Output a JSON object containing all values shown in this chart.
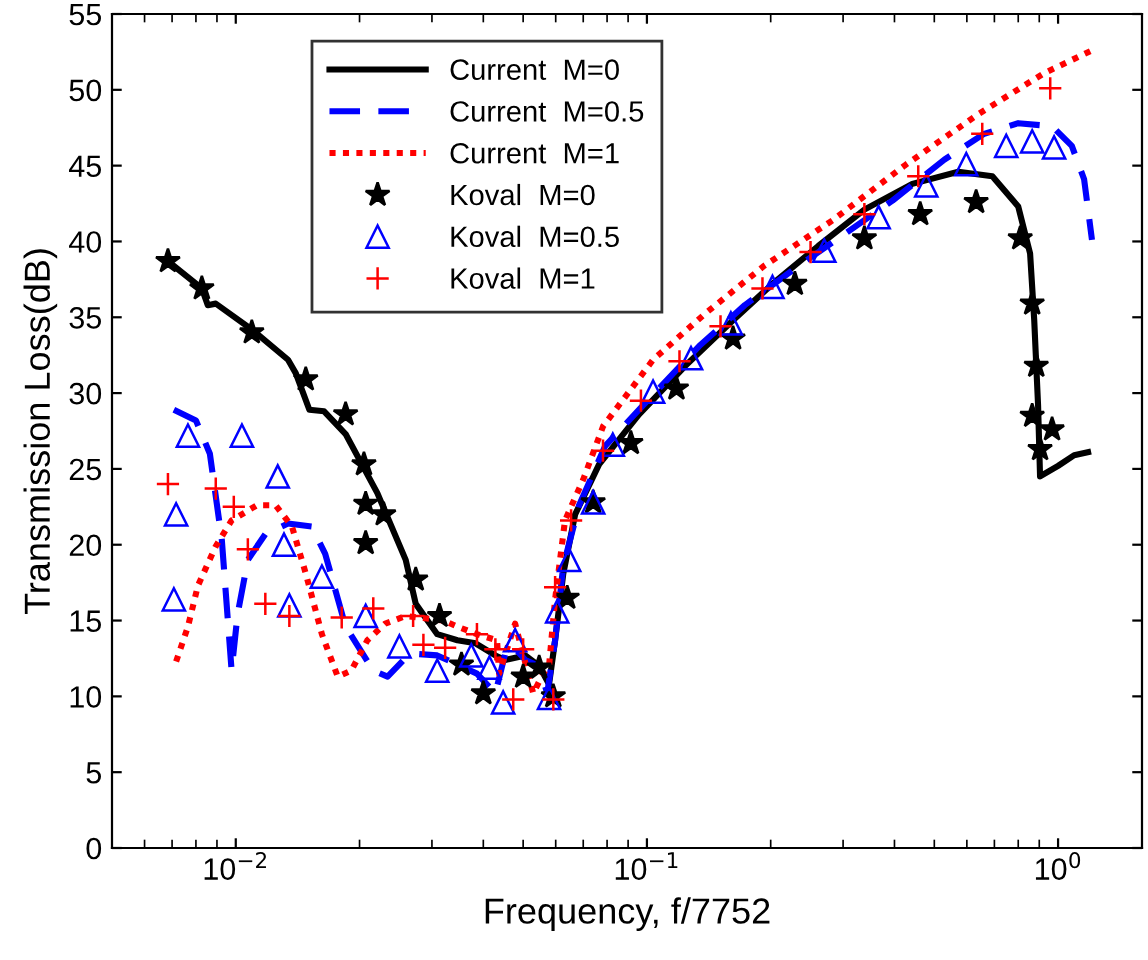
{
  "chart_data": {
    "type": "line",
    "xlabel": "Frequency, f/7752",
    "ylabel": "Transmission Loss(dB)",
    "log": "x",
    "grid": false,
    "legend": "top left",
    "xlim": [
      0.005,
      1.6
    ],
    "ylim": [
      0,
      55
    ],
    "xticks": [
      {
        "value": 0.006,
        "label": null
      },
      {
        "value": 0.007,
        "label": null
      },
      {
        "value": 0.008,
        "label": null
      },
      {
        "value": 0.009,
        "label": null
      },
      {
        "value": 0.01,
        "label": "10$^{−2}$"
      },
      {
        "value": 0.02,
        "label": null
      },
      {
        "value": 0.03,
        "label": null
      },
      {
        "value": 0.04,
        "label": null
      },
      {
        "value": 0.05,
        "label": null
      },
      {
        "value": 0.06,
        "label": null
      },
      {
        "value": 0.07,
        "label": null
      },
      {
        "value": 0.08,
        "label": null
      },
      {
        "value": 0.09,
        "label": null
      },
      {
        "value": 0.1,
        "label": "10$^{−1}$"
      },
      {
        "value": 0.2,
        "label": null
      },
      {
        "value": 0.3,
        "label": null
      },
      {
        "value": 0.4,
        "label": null
      },
      {
        "value": 0.5,
        "label": null
      },
      {
        "value": 0.6,
        "label": null
      },
      {
        "value": 0.7,
        "label": null
      },
      {
        "value": 0.8,
        "label": null
      },
      {
        "value": 0.9,
        "label": null
      },
      {
        "value": 1,
        "label": "10$^{0}$"
      }
    ],
    "yticks": [
      0,
      5,
      10,
      15,
      20,
      25,
      30,
      35,
      40,
      45,
      50,
      55
    ],
    "series": [
      {
        "name": "Current  M=0",
        "type": "line",
        "color": "#000000",
        "line_style": "solid",
        "marker": "none",
        "x": [
          0.00684,
          0.00827,
          0.00855,
          0.00894,
          0.01094,
          0.0134,
          0.014,
          0.0151,
          0.0164,
          0.0185,
          0.0221,
          0.0259,
          0.0274,
          0.0309,
          0.0346,
          0.0383,
          0.0428,
          0.0452,
          0.0506,
          0.0547,
          0.0578,
          0.0598,
          0.0626,
          0.0669,
          0.0765,
          0.0957,
          0.124,
          0.162,
          0.202,
          0.261,
          0.338,
          0.442,
          0.572,
          0.692,
          0.8,
          0.855,
          0.875,
          0.894,
          0.904,
          1.0,
          1.094,
          1.183
        ],
        "values": [
          38.7,
          36.9,
          35.8,
          35.9,
          34.2,
          32.2,
          31.3,
          28.9,
          28.8,
          27.3,
          23.4,
          19.0,
          16.1,
          14.1,
          13.7,
          13.5,
          12.7,
          12.4,
          12.7,
          12.0,
          10.8,
          13.7,
          18.1,
          22.0,
          25.3,
          28.6,
          31.8,
          34.8,
          37.2,
          39.7,
          42.1,
          43.8,
          44.6,
          44.3,
          42.3,
          39.2,
          34.8,
          29.2,
          24.5,
          25.2,
          25.9,
          26.1
        ]
      },
      {
        "name": "Current  M=0.5",
        "type": "line",
        "color": "#0000ff",
        "line_style": "dashed",
        "marker": "none",
        "x": [
          0.00707,
          0.008,
          0.00865,
          0.00925,
          0.00977,
          0.0101,
          0.0107,
          0.0118,
          0.0134,
          0.0153,
          0.0165,
          0.0185,
          0.0216,
          0.0234,
          0.0256,
          0.0274,
          0.0309,
          0.0346,
          0.0386,
          0.0428,
          0.0452,
          0.0473,
          0.0506,
          0.0547,
          0.0572,
          0.0598,
          0.0626,
          0.0684,
          0.0765,
          0.0791,
          0.1035,
          0.134,
          0.173,
          0.234,
          0.303,
          0.396,
          0.529,
          0.661,
          0.8,
          0.967,
          1.08,
          1.157,
          1.209
        ],
        "values": [
          28.9,
          28.2,
          26.0,
          20.3,
          11.7,
          15.4,
          19.0,
          20.7,
          21.4,
          21.2,
          19.4,
          14.6,
          11.7,
          11.3,
          12.4,
          12.8,
          12.7,
          12.1,
          11.5,
          10.2,
          12.8,
          13.3,
          12.4,
          12.0,
          10.2,
          13.7,
          18.6,
          22.6,
          25.6,
          26.5,
          29.9,
          33.1,
          35.8,
          38.4,
          40.5,
          42.7,
          45.4,
          47.1,
          47.8,
          47.6,
          46.3,
          44.1,
          40.1
        ]
      },
      {
        "name": "Current  M=1",
        "type": "line",
        "color": "#ff0000",
        "line_style": "dotted",
        "marker": "none",
        "x": [
          0.00716,
          0.00765,
          0.00809,
          0.00894,
          0.00977,
          0.01125,
          0.0125,
          0.0137,
          0.0148,
          0.0162,
          0.0177,
          0.0191,
          0.0209,
          0.0231,
          0.0259,
          0.032,
          0.0346,
          0.0386,
          0.0432,
          0.0437,
          0.0478,
          0.0529,
          0.0559,
          0.0578,
          0.0598,
          0.0632,
          0.07,
          0.0782,
          0.1035,
          0.138,
          0.193,
          0.283,
          0.423,
          0.64,
          0.925,
          1.209
        ],
        "values": [
          12.3,
          14.6,
          17.3,
          19.9,
          21.6,
          22.6,
          22.6,
          21.2,
          18.1,
          14.1,
          11.3,
          11.7,
          13.7,
          14.8,
          15.3,
          15.0,
          14.6,
          14.1,
          13.7,
          11.5,
          14.8,
          10.2,
          11.5,
          12.0,
          16.4,
          21.6,
          24.3,
          27.8,
          32.2,
          35.2,
          38.4,
          41.4,
          45.0,
          48.4,
          51.1,
          52.6
        ]
      },
      {
        "name": "Koval  M=0",
        "type": "scatter",
        "color": "#000000",
        "marker": "star",
        "x": [
          0.00684,
          0.00827,
          0.01094,
          0.0148,
          0.0185,
          0.0205,
          0.0207,
          0.0229,
          0.0207,
          0.0274,
          0.0313,
          0.0354,
          0.04,
          0.05,
          0.0547,
          0.0592,
          0.064,
          0.074,
          0.0914,
          0.118,
          0.162,
          0.229,
          0.338,
          0.462,
          0.632,
          0.809,
          0.865,
          0.885,
          0.865,
          0.967,
          0.904
        ],
        "values": [
          38.7,
          36.9,
          34.0,
          30.9,
          28.6,
          25.3,
          22.7,
          22.0,
          20.1,
          17.7,
          15.3,
          12.1,
          10.2,
          11.3,
          11.9,
          10.0,
          16.5,
          22.8,
          26.7,
          30.3,
          33.6,
          37.2,
          40.2,
          41.8,
          42.6,
          40.2,
          35.9,
          31.8,
          28.5,
          27.6,
          26.3
        ]
      },
      {
        "name": "Koval  M=0.5",
        "type": "scatter",
        "color": "#0000ff",
        "marker": "triangle",
        "x": [
          0.00707,
          0.00716,
          0.00765,
          0.01035,
          0.01265,
          0.0131,
          0.0135,
          0.0162,
          0.0207,
          0.025,
          0.0309,
          0.0374,
          0.0414,
          0.0447,
          0.0478,
          0.0578,
          0.0605,
          0.0647,
          0.074,
          0.0826,
          0.1035,
          0.128,
          0.16,
          0.202,
          0.27,
          0.366,
          0.478,
          0.598,
          0.748,
          0.865,
          0.978
        ],
        "values": [
          16.4,
          22.0,
          27.2,
          27.2,
          24.5,
          20.0,
          16.0,
          17.9,
          15.3,
          13.3,
          11.7,
          12.7,
          11.9,
          9.6,
          13.7,
          9.9,
          15.6,
          19.0,
          22.8,
          26.6,
          30.1,
          32.3,
          34.6,
          37.0,
          39.4,
          41.6,
          43.7,
          45.1,
          46.3,
          46.6,
          46.2
        ]
      },
      {
        "name": "Koval  M=1",
        "type": "scatter",
        "color": "#ff0000",
        "marker": "cross",
        "x": [
          0.00684,
          0.00894,
          0.00989,
          0.0107,
          0.0118,
          0.0135,
          0.0181,
          0.0216,
          0.027,
          0.0286,
          0.0323,
          0.0386,
          0.0428,
          0.0473,
          0.05,
          0.0592,
          0.0598,
          0.0654,
          0.0782,
          0.0967,
          0.12,
          0.151,
          0.191,
          0.25,
          0.338,
          0.457,
          0.654,
          0.957
        ],
        "values": [
          24.0,
          23.7,
          22.5,
          19.7,
          16.1,
          15.3,
          15.2,
          15.8,
          15.3,
          13.4,
          13.2,
          14.1,
          13.1,
          9.8,
          13.1,
          9.8,
          17.2,
          21.6,
          26.2,
          29.5,
          32.1,
          34.4,
          36.9,
          39.3,
          41.8,
          44.3,
          47.1,
          50.1
        ]
      }
    ]
  }
}
